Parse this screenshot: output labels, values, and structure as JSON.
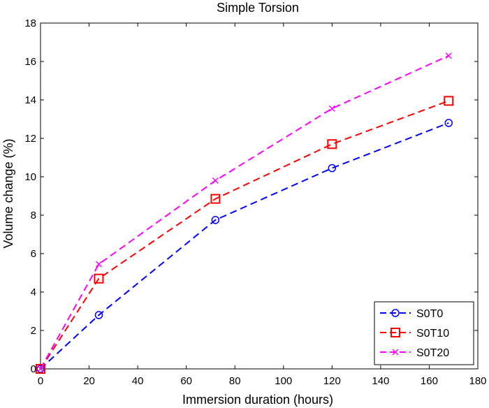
{
  "chart_data": {
    "type": "line",
    "title": "Simple Torsion",
    "xlabel": "Immersion duration (hours)",
    "ylabel": "Volume change (%)",
    "xlim": [
      0,
      180
    ],
    "ylim": [
      0,
      18
    ],
    "xticks": [
      0,
      20,
      40,
      60,
      80,
      100,
      120,
      140,
      160,
      180
    ],
    "yticks": [
      0,
      2,
      4,
      6,
      8,
      10,
      12,
      14,
      16,
      18
    ],
    "grid": false,
    "legend_position": "bottom-right",
    "x": [
      0,
      24,
      72,
      120,
      168
    ],
    "series": [
      {
        "name": "S0T0",
        "values": [
          0,
          2.8,
          7.75,
          10.45,
          12.8
        ],
        "color": "#0000ff",
        "marker": "circle"
      },
      {
        "name": "S0T10",
        "values": [
          0,
          4.7,
          8.85,
          11.7,
          13.95
        ],
        "color": "#ff0000",
        "marker": "square"
      },
      {
        "name": "S0T20",
        "values": [
          0,
          5.45,
          9.8,
          13.55,
          16.3
        ],
        "color": "#ff00ff",
        "marker": "x"
      }
    ]
  }
}
